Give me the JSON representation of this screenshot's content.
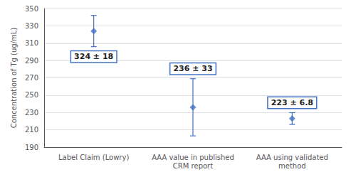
{
  "chart_data": {
    "type": "scatter",
    "categories": [
      "Label Claim (Lowry)",
      "AAA value in published\nCRM report",
      "AAA using validated\nmethod"
    ],
    "values": [
      324,
      236,
      223
    ],
    "errors": [
      18,
      33,
      6.8
    ],
    "annotations": [
      "324 ± 18",
      "236 ± 33",
      "223 ± 6.8"
    ],
    "ylabel": "Concentration of Tg (ug/mL)",
    "ylim": [
      190,
      350
    ],
    "yticks": [
      190,
      210,
      230,
      250,
      270,
      290,
      310,
      330,
      350
    ],
    "color": "#4472C4",
    "marker": "diamond",
    "grid": true
  }
}
